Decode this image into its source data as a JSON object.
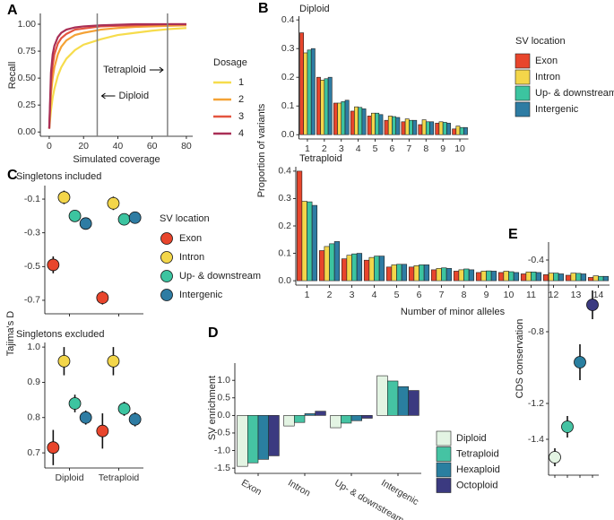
{
  "chart_data": [
    {
      "type": "line",
      "panel": "A",
      "x_label": "Simulated coverage",
      "y_label": "Recall",
      "x": [
        0,
        1,
        2,
        3,
        5,
        7,
        10,
        15,
        20,
        30,
        40,
        50,
        60,
        70,
        80
      ],
      "xlim": [
        -5.2,
        83.7
      ],
      "xticks": [
        0,
        20,
        40,
        60,
        80
      ],
      "ylim": [
        -0.04,
        1.1
      ],
      "yticks": [
        {
          "value": 0,
          "label": "0.00"
        },
        0.25,
        {
          "value": 0.5,
          "label": "0.50"
        },
        0.75,
        {
          "value": 1,
          "label": "1.00"
        }
      ],
      "legend_title": "Dosage",
      "series": [
        {
          "name": "1",
          "color": "#f6dc4c",
          "values": [
            0.03,
            0.2,
            0.32,
            0.4,
            0.52,
            0.6,
            0.68,
            0.76,
            0.81,
            0.86,
            0.9,
            0.92,
            0.94,
            0.955,
            0.965
          ]
        },
        {
          "name": "2",
          "color": "#f4a236",
          "values": [
            0.03,
            0.35,
            0.5,
            0.6,
            0.72,
            0.79,
            0.85,
            0.9,
            0.92,
            0.95,
            0.965,
            0.975,
            0.98,
            0.985,
            0.99
          ]
        },
        {
          "name": "3",
          "color": "#e4553f",
          "values": [
            0.03,
            0.45,
            0.62,
            0.72,
            0.82,
            0.87,
            0.91,
            0.95,
            0.96,
            0.98,
            0.985,
            0.99,
            0.995,
            1,
            1
          ]
        },
        {
          "name": "4",
          "color": "#a92f56",
          "values": [
            0.03,
            0.55,
            0.72,
            0.8,
            0.88,
            0.92,
            0.95,
            0.97,
            0.98,
            0.99,
            0.995,
            1,
            1,
            1,
            1
          ]
        }
      ],
      "annotations": [
        {
          "x": 28,
          "label": "Diploid"
        },
        {
          "x": 69,
          "label": "Tetraploid"
        }
      ],
      "annotation_color": "#808080"
    },
    {
      "type": "bar",
      "panel": "B",
      "title": "Diploid",
      "y_label": "Proportion of variants",
      "legend_title": "SV location",
      "categories": [
        "1",
        "2",
        "3",
        "4",
        "5",
        "6",
        "7",
        "8",
        "9",
        "10"
      ],
      "ylim": [
        -0.015,
        0.413
      ],
      "yticks": [
        {
          "value": 0,
          "label": "0.0"
        },
        0.1,
        0.2,
        0.3,
        0.4
      ],
      "series": [
        {
          "name": "Exon",
          "color": "#e8452c",
          "values": [
            0.355,
            0.2,
            0.11,
            0.082,
            0.065,
            0.05,
            0.045,
            0.035,
            0.04,
            0.02
          ]
        },
        {
          "name": "Intron",
          "color": "#f3d64a",
          "values": [
            0.285,
            0.19,
            0.11,
            0.097,
            0.075,
            0.065,
            0.055,
            0.052,
            0.045,
            0.03
          ]
        },
        {
          "name": "Up- & downstream",
          "color": "#3cc4a0",
          "values": [
            0.295,
            0.195,
            0.115,
            0.095,
            0.075,
            0.063,
            0.05,
            0.045,
            0.043,
            0.025
          ]
        },
        {
          "name": "Intergenic",
          "color": "#2e7ca3",
          "values": [
            0.3,
            0.2,
            0.12,
            0.09,
            0.07,
            0.06,
            0.05,
            0.045,
            0.04,
            0.025
          ]
        }
      ]
    },
    {
      "type": "bar",
      "title": "Tetraploid",
      "x_label": "Number of minor alleles",
      "categories": [
        "1",
        "2",
        "3",
        "4",
        "5",
        "6",
        "7",
        "8",
        "9",
        "10",
        "11",
        "12",
        "13",
        "14"
      ],
      "ylim": [
        -0.016,
        0.416
      ],
      "yticks": [
        {
          "value": 0,
          "label": "0.0"
        },
        0.1,
        0.2,
        0.3,
        0.4
      ],
      "series": [
        {
          "name": "Exon",
          "color": "#e8452c",
          "values": [
            0.4,
            0.11,
            0.08,
            0.075,
            0.05,
            0.05,
            0.04,
            0.035,
            0.03,
            0.03,
            0.025,
            0.022,
            0.02,
            0.012
          ]
        },
        {
          "name": "Intron",
          "color": "#f3d64a",
          "values": [
            0.29,
            0.125,
            0.093,
            0.085,
            0.058,
            0.055,
            0.045,
            0.04,
            0.035,
            0.035,
            0.032,
            0.028,
            0.028,
            0.018
          ]
        },
        {
          "name": "Up- & downstream",
          "color": "#3cc4a0",
          "values": [
            0.288,
            0.135,
            0.098,
            0.09,
            0.06,
            0.058,
            0.047,
            0.043,
            0.036,
            0.033,
            0.032,
            0.028,
            0.027,
            0.016
          ]
        },
        {
          "name": "Intergenic",
          "color": "#2e7ca3",
          "values": [
            0.275,
            0.143,
            0.1,
            0.09,
            0.06,
            0.058,
            0.045,
            0.04,
            0.035,
            0.03,
            0.03,
            0.025,
            0.025,
            0.016
          ]
        }
      ]
    },
    {
      "type": "dot",
      "panel": "C",
      "title": "Singletons included",
      "y_label": "Tajima's D",
      "legend_title": "SV location",
      "ylim": [
        -0.78,
        -0.02
      ],
      "yticks": [
        -0.1,
        -0.3,
        -0.5,
        -0.7
      ],
      "series": [
        {
          "name": "Exon",
          "color": "#e8452c",
          "values": [
            -0.49,
            -0.685
          ],
          "errors": [
            0.05,
            0.04
          ]
        },
        {
          "name": "Intron",
          "color": "#f3d64a",
          "values": [
            -0.09,
            -0.125
          ],
          "errors": [
            0.04,
            0.04
          ]
        },
        {
          "name": "Up- & downstream",
          "color": "#3cc4a0",
          "values": [
            -0.2,
            -0.22
          ],
          "errors": [
            0.03,
            0.03
          ]
        },
        {
          "name": "Intergenic",
          "color": "#2e7ca3",
          "values": [
            -0.245,
            -0.21
          ],
          "errors": [
            0.025,
            0.025
          ]
        }
      ]
    },
    {
      "type": "dot",
      "title": "Singletons excluded",
      "categories": [
        "Diploid",
        "Tetraploid"
      ],
      "ylim": [
        0.657,
        1.013
      ],
      "yticks": [
        0.7,
        0.8,
        0.9,
        {
          "value": 1,
          "label": "1.0"
        }
      ],
      "series": [
        {
          "name": "Exon",
          "color": "#e8452c",
          "values": [
            0.715,
            0.762
          ],
          "errors": [
            0.05,
            0.05
          ]
        },
        {
          "name": "Intron",
          "color": "#f3d64a",
          "values": [
            0.96,
            0.96
          ],
          "errors": [
            0.04,
            0.04
          ]
        },
        {
          "name": "Up- & downstream",
          "color": "#3cc4a0",
          "values": [
            0.84,
            0.825
          ],
          "errors": [
            0.025,
            0.02
          ]
        },
        {
          "name": "Intergenic",
          "color": "#2e7ca3",
          "values": [
            0.8,
            0.795
          ],
          "errors": [
            0.02,
            0.02
          ]
        }
      ]
    },
    {
      "type": "bar",
      "panel": "D",
      "y_label": "SV enrichment",
      "categories": [
        "Exon",
        "Intron",
        "Up- & downstream",
        "Intergenic"
      ],
      "ylim": [
        -1.65,
        1.49
      ],
      "yticks": [
        -1.5,
        {
          "value": -1,
          "label": "-1.0"
        },
        -0.5,
        {
          "value": 0,
          "label": "0.0"
        },
        0.5,
        {
          "value": 1,
          "label": "1.0"
        }
      ],
      "legend": "right",
      "series": [
        {
          "name": "Diploid",
          "color": "#e3f4e3",
          "values": [
            -1.45,
            -0.3,
            -0.35,
            1.13
          ]
        },
        {
          "name": "Tetraploid",
          "color": "#45c3a3",
          "values": [
            -1.35,
            -0.2,
            -0.22,
            0.98
          ]
        },
        {
          "name": "Hexaploid",
          "color": "#2a7fa0",
          "values": [
            -1.25,
            0.05,
            -0.15,
            0.82
          ]
        },
        {
          "name": "Octoploid",
          "color": "#3b3a80",
          "values": [
            -1.15,
            0.12,
            -0.08,
            0.71
          ]
        }
      ]
    },
    {
      "type": "dot",
      "panel": "E",
      "y_label": "CDS conservation",
      "ylim": [
        -1.6,
        -0.3
      ],
      "yticks": [
        -0.4,
        -0.8,
        -1.2,
        -1.4
      ],
      "series": [
        {
          "colors": [
            "#e3f4e3",
            "#45c3a3",
            "#2a7fa0",
            "#3b3a80"
          ],
          "values": [
            -1.5,
            -1.33,
            -0.97,
            -0.65
          ],
          "errors": [
            0.05,
            0.06,
            0.1,
            0.08
          ]
        }
      ]
    }
  ]
}
